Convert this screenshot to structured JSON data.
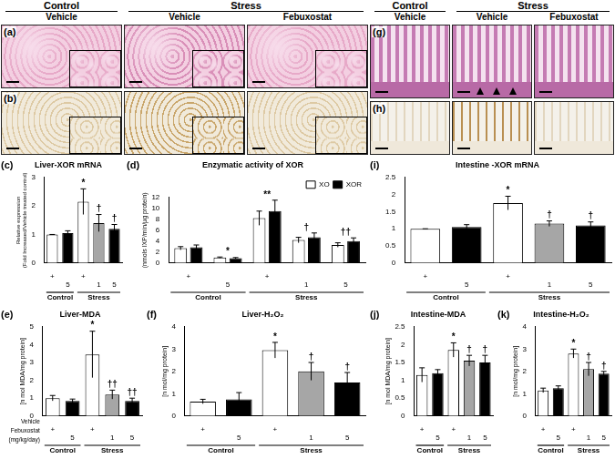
{
  "micrographs": {
    "left": {
      "groups": [
        {
          "label": "Control",
          "columns": [
            "Vehicle"
          ]
        },
        {
          "label": "Stress",
          "columns": [
            "Vehicle",
            "Febuxostat"
          ]
        }
      ],
      "rows": [
        "(a)",
        "(b)"
      ]
    },
    "right": {
      "groups": [
        {
          "label": "Control",
          "columns": [
            "Vehicle"
          ]
        },
        {
          "label": "Stress",
          "columns": [
            "Vehicle",
            "Febuxostat"
          ]
        }
      ],
      "rows": [
        "(g)",
        "(h)"
      ]
    }
  },
  "chart_data": [
    {
      "panel": "(c)",
      "type": "bar",
      "title": "Liver-XOR mRNA",
      "y_label": [
        "Relative expression",
        "(Fold Increased/Vehicle treated control)"
      ],
      "vehicle": [
        "+",
        null,
        "+",
        null,
        null
      ],
      "dose": [
        null,
        "5",
        null,
        "1",
        "5"
      ],
      "groups": [
        "Control",
        "Control",
        "Stress",
        "Stress",
        "Stress"
      ],
      "values": [
        1.0,
        1.05,
        2.15,
        1.4,
        1.2
      ],
      "errors": [
        0,
        0.08,
        0.45,
        0.3,
        0.15
      ],
      "colors": [
        "#ffffff",
        "#000000",
        "#ffffff",
        "#a6a6a6",
        "#000000"
      ],
      "marks": [
        null,
        null,
        "*",
        "†",
        "†"
      ],
      "ylim": [
        0,
        3
      ],
      "yticks": [
        0,
        1,
        2,
        3
      ],
      "grid": false
    },
    {
      "panel": "(d)",
      "type": "bar",
      "title": "Enzymatic activity of XOR",
      "y_label": "(nmols IXP/min/μg protein)",
      "vehicle": [
        "+",
        null,
        "+",
        null,
        null
      ],
      "dose": [
        null,
        "5",
        null,
        "1",
        "5"
      ],
      "groups": [
        "Control",
        "Control",
        "Stress",
        "Stress",
        "Stress"
      ],
      "series": [
        {
          "name": "XO",
          "color": "#ffffff",
          "values": [
            2.7,
            1.0,
            8.2,
            4.2,
            3.3
          ],
          "errors": [
            0.3,
            0.1,
            1.3,
            0.5,
            0.4
          ]
        },
        {
          "name": "XOR",
          "color": "#000000",
          "values": [
            2.9,
            0.9,
            9.5,
            4.7,
            4.0
          ],
          "errors": [
            0.4,
            0.1,
            2.0,
            0.8,
            0.6
          ]
        }
      ],
      "marks": [
        null,
        "*",
        "**",
        "†",
        "††"
      ],
      "legend": "top-right",
      "ylim": [
        0,
        12
      ],
      "yticks": [
        0,
        2,
        4,
        6,
        8,
        10,
        12
      ],
      "grid": false
    },
    {
      "panel": "(i)",
      "type": "bar",
      "title": "Intestine -XOR mRNA",
      "vehicle": [
        "+",
        null,
        "+",
        null,
        null
      ],
      "dose": [
        null,
        "5",
        null,
        "1",
        "5"
      ],
      "groups": [
        "Control",
        "Control",
        "Stress",
        "Stress",
        "Stress"
      ],
      "values": [
        1.0,
        1.05,
        1.75,
        1.15,
        1.1
      ],
      "errors": [
        0,
        0.07,
        0.2,
        0.08,
        0.1
      ],
      "colors": [
        "#ffffff",
        "#000000",
        "#ffffff",
        "#a6a6a6",
        "#000000"
      ],
      "marks": [
        null,
        null,
        "*",
        "†",
        "†"
      ],
      "ylim": [
        0,
        2.5
      ],
      "yticks": [
        0,
        0.5,
        1,
        1.5,
        2,
        2.5
      ],
      "grid": false
    },
    {
      "panel": "(e)",
      "type": "bar",
      "title": "Liver-MDA",
      "y_label": "[n mol MDA/mg protein]",
      "vehicle": [
        "+",
        null,
        "+",
        null,
        null
      ],
      "dose": [
        null,
        "5",
        null,
        "1",
        "5"
      ],
      "groups": [
        "Control",
        "Control",
        "Stress",
        "Stress",
        "Stress"
      ],
      "row_labels": [
        "Vehicle",
        "Febuxostat (mg/kg/day)"
      ],
      "values": [
        1.0,
        0.85,
        3.45,
        1.2,
        0.85
      ],
      "errors": [
        0.15,
        0.1,
        1.3,
        0.25,
        0.15
      ],
      "colors": [
        "#ffffff",
        "#000000",
        "#ffffff",
        "#a6a6a6",
        "#000000"
      ],
      "marks": [
        null,
        null,
        "*",
        "††",
        "††"
      ],
      "ylim": [
        0,
        5
      ],
      "yticks": [
        0,
        1,
        2,
        3,
        4,
        5
      ],
      "grid": false
    },
    {
      "panel": "(f)",
      "type": "bar",
      "title": "Liver-H₂O₂",
      "y_label": "[n mol/mg protein]",
      "vehicle": [
        "+",
        null,
        "+",
        null,
        null
      ],
      "dose": [
        null,
        "5",
        null,
        "1",
        "5"
      ],
      "groups": [
        "Control",
        "Control",
        "Stress",
        "Stress",
        "Stress"
      ],
      "values": [
        0.65,
        0.75,
        2.95,
        2.0,
        1.5
      ],
      "errors": [
        0.1,
        0.3,
        0.35,
        0.4,
        0.45
      ],
      "colors": [
        "#ffffff",
        "#000000",
        "#ffffff",
        "#a6a6a6",
        "#000000"
      ],
      "marks": [
        null,
        null,
        "*",
        "†",
        "†"
      ],
      "ylim": [
        0,
        4
      ],
      "yticks": [
        0,
        1,
        2,
        3,
        4
      ],
      "grid": false
    },
    {
      "panel": "(j)",
      "type": "bar",
      "title": "Intestine-MDA",
      "y_label": "[n mol MDA/mg protein]",
      "vehicle": [
        "+",
        null,
        "+",
        null,
        null
      ],
      "dose": [
        null,
        "5",
        null,
        "1",
        "5"
      ],
      "groups": [
        "Control",
        "Control",
        "Stress",
        "Stress",
        "Stress"
      ],
      "values": [
        1.15,
        1.2,
        1.85,
        1.55,
        1.5
      ],
      "errors": [
        0.2,
        0.1,
        0.2,
        0.15,
        0.2
      ],
      "colors": [
        "#ffffff",
        "#000000",
        "#ffffff",
        "#a6a6a6",
        "#000000"
      ],
      "marks": [
        null,
        null,
        "*",
        "†",
        "†"
      ],
      "ylim": [
        0,
        2.5
      ],
      "yticks": [
        0,
        0.5,
        1,
        1.5,
        2,
        2.5
      ],
      "grid": false
    },
    {
      "panel": "(k)",
      "type": "bar",
      "title": "Intestine-H₂O₂",
      "y_label": "[n mol/mg protein]",
      "vehicle": [
        "+",
        null,
        "+",
        null,
        null
      ],
      "dose": [
        null,
        "5",
        null,
        "1",
        "5"
      ],
      "groups": [
        "Control",
        "Control",
        "Stress",
        "Stress",
        "Stress"
      ],
      "values": [
        1.15,
        1.25,
        2.8,
        2.1,
        1.9
      ],
      "errors": [
        0.1,
        0.1,
        0.2,
        0.3,
        0.1
      ],
      "colors": [
        "#ffffff",
        "#000000",
        "#ffffff",
        "#a6a6a6",
        "#000000"
      ],
      "marks": [
        null,
        null,
        "*",
        "†",
        "†"
      ],
      "ylim": [
        0,
        4
      ],
      "yticks": [
        0,
        1,
        2,
        3,
        4
      ],
      "grid": false
    }
  ]
}
